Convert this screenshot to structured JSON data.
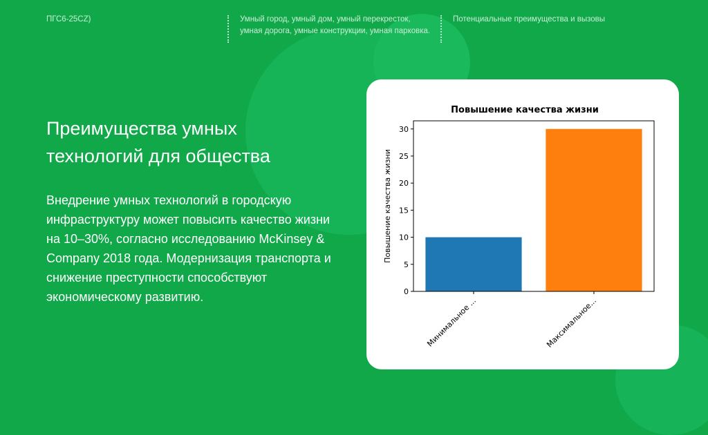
{
  "header": {
    "crumb1": "ПГС6-25CZ)",
    "crumb2": "Умный город, умный дом, умный перекресток, умная дорога, умные конструкции, умная парковка.",
    "crumb3": "Потенциальные преимущества и вызовы"
  },
  "slide": {
    "title": "Преимущества умных технологий для общества",
    "body": "Внедрение умных технологий в городскую инфраструктуру может повысить качество жизни на 10–30%, согласно исследованию McKinsey & Company 2018 года. Модернизация транспорта и снижение преступности способствуют экономическому развитию."
  },
  "chart_data": {
    "type": "bar",
    "title": "Повышение качества жизни",
    "ylabel": "Повышение качества жизни",
    "xlabel": "",
    "categories": [
      "Минимальное ...",
      "Максимальное..."
    ],
    "values": [
      10,
      30
    ],
    "colors": [
      "#1f77b4",
      "#ff7f0e"
    ],
    "ylim": [
      0,
      31.5
    ],
    "yticks": [
      0,
      5,
      10,
      15,
      20,
      25,
      30
    ],
    "grid": false
  }
}
